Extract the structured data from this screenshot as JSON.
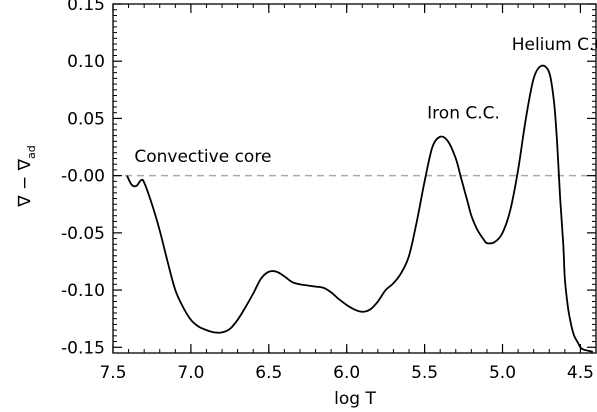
{
  "chart_data": {
    "type": "line",
    "title": "",
    "xlabel": "log T",
    "ylabel_main": "∇ − ∇",
    "ylabel_sub": "ad",
    "xlim": [
      7.5,
      4.4
    ],
    "ylim": [
      -0.155,
      0.15
    ],
    "x_reversed": true,
    "x_ticks": [
      7.5,
      7.0,
      6.5,
      6.0,
      5.5,
      5.0,
      4.5
    ],
    "x_tick_labels": [
      "7.5",
      "7.0",
      "6.5",
      "6.0",
      "5.5",
      "5.0",
      "4.5"
    ],
    "y_ticks": [
      0.15,
      0.1,
      0.05,
      0.0,
      -0.05,
      -0.1,
      -0.15
    ],
    "y_tick_labels": [
      "0.15",
      "0.10",
      "0.05",
      "-0.00",
      "-0.05",
      "-0.10",
      "-0.15"
    ],
    "reference_line": {
      "y": 0.0,
      "style": "dashed",
      "color": "#aaaaaa"
    },
    "series": [
      {
        "color": "#000000",
        "x": [
          7.41,
          7.38,
          7.35,
          7.32,
          7.3,
          7.25,
          7.2,
          7.15,
          7.1,
          7.05,
          7.0,
          6.95,
          6.9,
          6.85,
          6.8,
          6.75,
          6.7,
          6.65,
          6.6,
          6.55,
          6.5,
          6.45,
          6.4,
          6.35,
          6.3,
          6.25,
          6.2,
          6.15,
          6.1,
          6.05,
          6.0,
          5.95,
          5.9,
          5.85,
          5.8,
          5.75,
          5.7,
          5.65,
          5.6,
          5.55,
          5.5,
          5.45,
          5.4,
          5.35,
          5.3,
          5.27,
          5.25,
          5.22,
          5.2,
          5.17,
          5.15,
          5.12,
          5.1,
          5.05,
          5.0,
          4.95,
          4.9,
          4.85,
          4.8,
          4.75,
          4.7,
          4.67,
          4.65,
          4.63,
          4.61,
          4.6,
          4.58,
          4.56,
          4.54,
          4.52,
          4.5,
          4.48,
          4.45,
          4.42
        ],
        "y": [
          0.0,
          -0.008,
          -0.009,
          -0.004,
          -0.006,
          -0.025,
          -0.048,
          -0.075,
          -0.1,
          -0.115,
          -0.126,
          -0.132,
          -0.135,
          -0.137,
          -0.137,
          -0.134,
          -0.126,
          -0.115,
          -0.103,
          -0.09,
          -0.084,
          -0.084,
          -0.088,
          -0.093,
          -0.095,
          -0.096,
          -0.097,
          -0.098,
          -0.102,
          -0.108,
          -0.113,
          -0.117,
          -0.119,
          -0.117,
          -0.11,
          -0.1,
          -0.094,
          -0.085,
          -0.07,
          -0.04,
          -0.005,
          0.025,
          0.034,
          0.03,
          0.015,
          0.0,
          -0.01,
          -0.025,
          -0.035,
          -0.045,
          -0.05,
          -0.056,
          -0.059,
          -0.058,
          -0.05,
          -0.03,
          0.005,
          0.05,
          0.085,
          0.096,
          0.09,
          0.065,
          0.03,
          -0.02,
          -0.06,
          -0.09,
          -0.115,
          -0.13,
          -0.14,
          -0.145,
          -0.15,
          -0.152,
          -0.153,
          -0.154
        ]
      }
    ],
    "annotations": [
      {
        "text": "Convective core",
        "x": 7.35,
        "y": 0.012
      },
      {
        "text": "Iron C.C.",
        "x": 5.25,
        "y": 0.05
      },
      {
        "text": "Helium C.C.",
        "x": 4.62,
        "y": 0.11
      }
    ]
  }
}
